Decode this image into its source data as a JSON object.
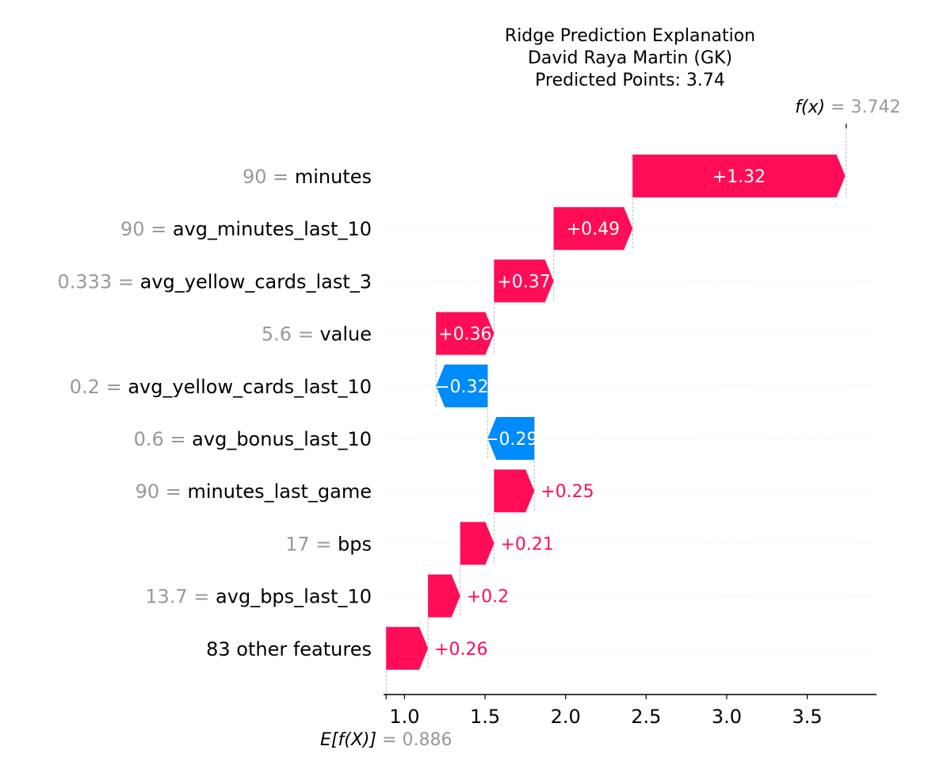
{
  "chart_data": {
    "type": "waterfall",
    "title_lines": [
      "Ridge Prediction Explanation",
      "David Raya Martin (GK)",
      "Predicted Points: 3.74"
    ],
    "base_value": 0.886,
    "base_label": "E[f(X)]",
    "base_value_text": "0.886",
    "final_value": 3.742,
    "final_label": "f(x)",
    "final_value_text": "3.742",
    "xlim": [
      0.87,
      3.93
    ],
    "xticks": [
      1.0,
      1.5,
      2.0,
      2.5,
      3.0,
      3.5
    ],
    "xtick_labels": [
      "1.0",
      "1.5",
      "2.0",
      "2.5",
      "3.0",
      "3.5"
    ],
    "features": [
      {
        "value": "90",
        "name": "minutes",
        "shap": 1.32,
        "label": "+1.32"
      },
      {
        "value": "90",
        "name": "avg_minutes_last_10",
        "shap": 0.49,
        "label": "+0.49"
      },
      {
        "value": "0.333",
        "name": "avg_yellow_cards_last_3",
        "shap": 0.37,
        "label": "+0.37"
      },
      {
        "value": "5.6",
        "name": "value",
        "shap": 0.36,
        "label": "+0.36"
      },
      {
        "value": "0.2",
        "name": "avg_yellow_cards_last_10",
        "shap": -0.32,
        "label": "−0.32"
      },
      {
        "value": "0.6",
        "name": "avg_bonus_last_10",
        "shap": -0.29,
        "label": "−0.29"
      },
      {
        "value": "90",
        "name": "minutes_last_game",
        "shap": 0.25,
        "label": "+0.25"
      },
      {
        "value": "17",
        "name": "bps",
        "shap": 0.21,
        "label": "+0.21"
      },
      {
        "value": "13.7",
        "name": "avg_bps_last_10",
        "shap": 0.2,
        "label": "+0.2"
      },
      {
        "value": "",
        "name": "83 other features",
        "shap": 0.26,
        "label": "+0.26"
      }
    ],
    "colors": {
      "positive": "#ff0d57",
      "negative": "#008bfb",
      "value_text": "#999999",
      "grid": "#cccccc"
    }
  }
}
